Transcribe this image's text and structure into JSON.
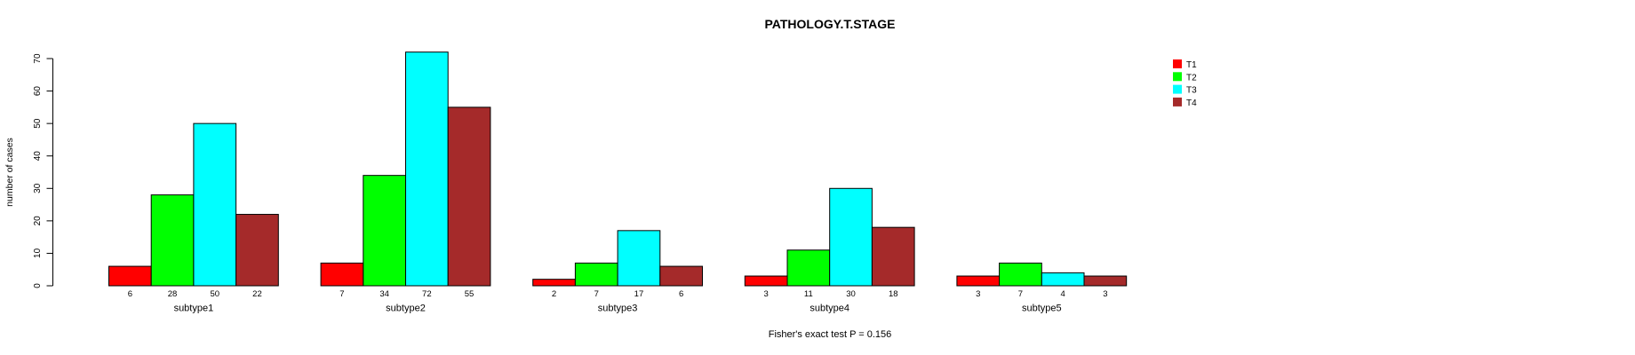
{
  "chart_data": {
    "type": "bar",
    "title": "PATHOLOGY.T.STAGE",
    "xlabel": "",
    "ylabel": "number of cases",
    "annotation": "Fisher's exact test P = 0.156",
    "categories": [
      "subtype1",
      "subtype2",
      "subtype3",
      "subtype4",
      "subtype5"
    ],
    "series": [
      {
        "name": "T1",
        "color": "#FF0000",
        "values": [
          6,
          7,
          2,
          3,
          3
        ]
      },
      {
        "name": "T2",
        "color": "#00FF00",
        "values": [
          28,
          34,
          7,
          11,
          7
        ]
      },
      {
        "name": "T3",
        "color": "#00FFFF",
        "values": [
          50,
          72,
          17,
          30,
          4
        ]
      },
      {
        "name": "T4",
        "color": "#A52A2A",
        "values": [
          22,
          55,
          6,
          18,
          3
        ]
      }
    ],
    "ylim": [
      0,
      70
    ],
    "ytick_step": 10,
    "yticks": [
      0,
      10,
      20,
      30,
      40,
      50,
      60,
      70
    ],
    "grid": false,
    "bar_value_labels": true,
    "legend_position": "right",
    "bar_border_color": "#000000",
    "axis_color": "#000000"
  }
}
